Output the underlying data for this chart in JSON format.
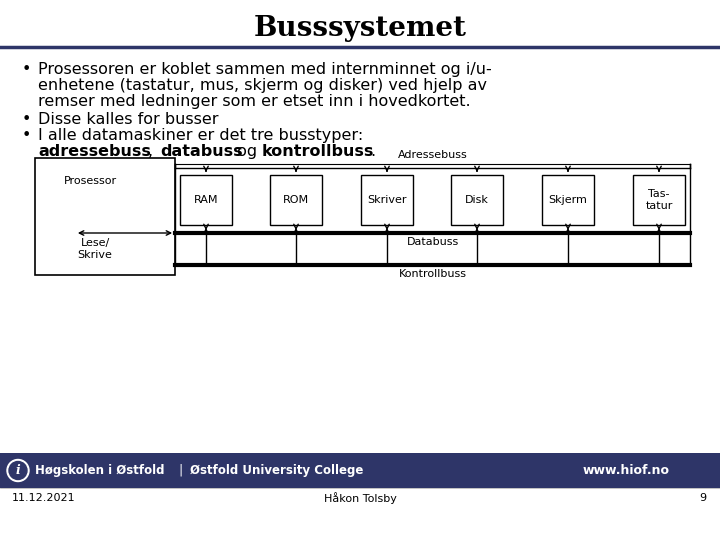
{
  "title": "Busssystemet",
  "title_fontsize": 20,
  "title_fontweight": "bold",
  "bg_color": "#ffffff",
  "header_line_color": "#2e3568",
  "footer_bg_color": "#2e3568",
  "footer_text_left": "Høgskolen i Østfold  |  Østfold University College",
  "footer_text_right": "www.hiof.no",
  "footer_date": "11.12.2021",
  "footer_author": "Håkon Tolsby",
  "footer_page": "9",
  "diagram": {
    "prosessor_label": "Prosessor",
    "lese_skrive_label": "Lese/\nSkrive",
    "adressebuss_label": "Adressebuss",
    "databuss_label": "Databuss",
    "kontrollbuss_label": "Kontrollbuss",
    "boxes": [
      "RAM",
      "ROM",
      "Skriver",
      "Disk",
      "Skjerm",
      "Tas-\ntatur"
    ]
  }
}
